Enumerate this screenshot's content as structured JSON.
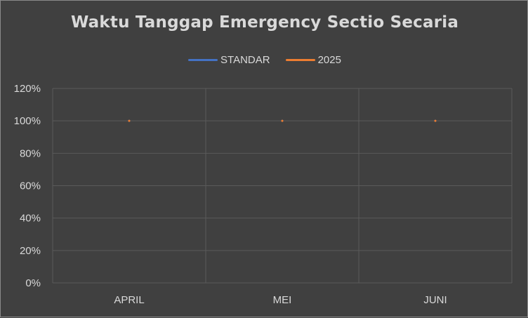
{
  "chart_data": {
    "type": "line",
    "title": "Waktu Tanggap Emergency Sectio Secaria",
    "categories": [
      "APRIL",
      "MEI",
      "JUNI"
    ],
    "series": [
      {
        "name": "STANDAR",
        "color": "#4472c4",
        "values": [
          100,
          100,
          100
        ]
      },
      {
        "name": "2025",
        "color": "#ed7d31",
        "values": [
          100,
          100,
          100
        ]
      }
    ],
    "y_ticks": [
      0,
      20,
      40,
      60,
      80,
      100,
      120
    ],
    "y_tick_labels": [
      "0%",
      "20%",
      "40%",
      "60%",
      "80%",
      "100%",
      "120%"
    ],
    "ylim": [
      0,
      120
    ],
    "xlabel": "",
    "ylabel": "",
    "legend_position": "top",
    "grid": true
  },
  "colors": {
    "background": "#404040",
    "grid": "#5a5a5a",
    "text": "#d9d9d9"
  }
}
